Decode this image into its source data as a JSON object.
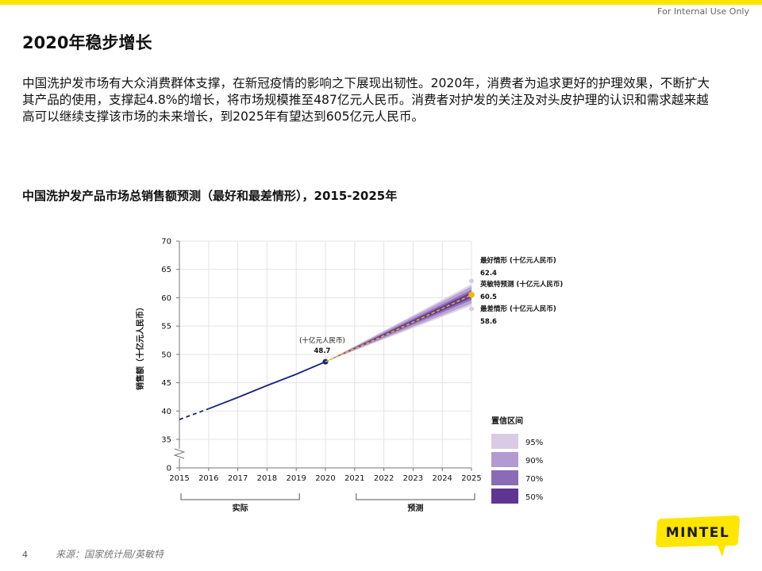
{
  "header": {
    "internal_label": "For Internal Use Only",
    "brand_color": "#ffe600"
  },
  "page": {
    "title": "2020年稳步增长",
    "intro": "中国洗护发市场有大众消费群体支撑，在新冠疫情的影响之下展现出韧性。2020年，消费者为追求更好的护理效果，不断扩大其产品的使用，支撑起4.8%的增长，将市场规模推至487亿元人民币。消费者对护发的关注及对头皮护理的认识和需求越来越高可以继续支撑该市场的未来增长，到2025年有望达到605亿元人民币。",
    "chart_title": "中国洗护发产品市场总销售额预测（最好和最差情形），2015-2025年"
  },
  "footer": {
    "page_number": "4",
    "source": "来源：国家统计局/英敏特"
  },
  "logo": {
    "text": "MINTEL",
    "bg_color": "#ffe600",
    "text_color": "#1a1a1a"
  },
  "chart_data": {
    "type": "line",
    "ylabel": "销售额（十亿元人民币）",
    "x": [
      2015,
      2016,
      2017,
      2018,
      2019,
      2020,
      2021,
      2022,
      2023,
      2024,
      2025
    ],
    "xticks": [
      "2015",
      "2016",
      "2017",
      "2018",
      "2019",
      "2020",
      "2021",
      "2022",
      "2023",
      "2024",
      "2025"
    ],
    "yticks": [
      0,
      35,
      40,
      45,
      50,
      55,
      60,
      65,
      70
    ],
    "ylim": [
      0,
      70
    ],
    "axis_break": true,
    "grid": true,
    "series": [
      {
        "kind": "actual",
        "color": "#1a237e",
        "points": [
          [
            2015,
            38.5
          ],
          [
            2016,
            40.4
          ],
          [
            2017,
            42.4
          ],
          [
            2018,
            44.5
          ],
          [
            2019,
            46.5
          ],
          [
            2020,
            48.7
          ]
        ],
        "dashed_until": 2016
      },
      {
        "kind": "forecast",
        "color": "#f2b705",
        "points": [
          [
            2020,
            48.7
          ],
          [
            2021,
            51.0
          ],
          [
            2022,
            53.3
          ],
          [
            2023,
            55.7
          ],
          [
            2024,
            58.1
          ],
          [
            2025,
            60.5
          ]
        ]
      }
    ],
    "fan": {
      "start": [
        2020,
        48.7
      ],
      "end_year": 2025,
      "bands": [
        {
          "level": "95%",
          "lower": 58.6,
          "upper": 62.4,
          "color": "#d9cbe6"
        },
        {
          "level": "90%",
          "lower": 59.0,
          "upper": 62.0,
          "color": "#b39ad0"
        },
        {
          "level": "70%",
          "lower": 59.6,
          "upper": 61.4,
          "color": "#8a6bb5"
        },
        {
          "level": "50%",
          "lower": 60.0,
          "upper": 61.0,
          "color": "#5e3591"
        }
      ]
    },
    "annotations": {
      "point_2020": {
        "label": "(十亿元人民币)",
        "value": "48.7",
        "year": 2020,
        "y": 48.7
      },
      "best": {
        "label": "最好情形 (十亿元人民币)",
        "value": "62.4",
        "y": 62.4
      },
      "forecast": {
        "label": "英敏特预测 (十亿元人民币)",
        "value": "60.5",
        "y": 60.5
      },
      "worst": {
        "label": "最差情形 (十亿元人民币)",
        "value": "58.6",
        "y": 58.6
      }
    },
    "legend": {
      "title": "置信区间",
      "placement": "bottom-right",
      "items": [
        {
          "label": "95%",
          "color": "#d9cbe6"
        },
        {
          "label": "90%",
          "color": "#b39ad0"
        },
        {
          "label": "70%",
          "color": "#8a6bb5"
        },
        {
          "label": "50%",
          "color": "#5e3591"
        }
      ]
    },
    "brackets": [
      {
        "label": "实际",
        "from": 2015,
        "to": 2019
      },
      {
        "label": "预测",
        "from": 2021,
        "to": 2025
      }
    ]
  }
}
